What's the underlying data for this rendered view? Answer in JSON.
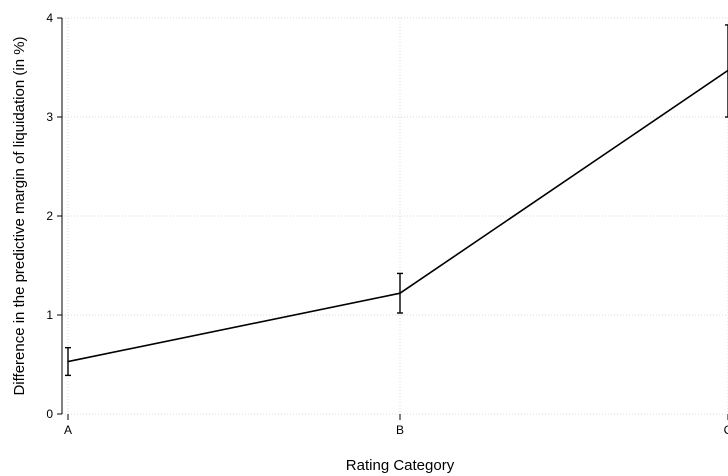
{
  "chart_data": {
    "type": "line",
    "title": "",
    "xlabel": "Rating Category",
    "ylabel": "Difference in the predictive margin of liquidation (in %)",
    "categories": [
      "A",
      "B",
      "C"
    ],
    "series": [
      {
        "values": [
          0.53,
          1.22,
          3.47
        ],
        "ci_low": [
          0.39,
          1.02,
          3.0
        ],
        "ci_high": [
          0.67,
          1.42,
          3.93
        ]
      }
    ],
    "ylim": [
      0,
      4
    ],
    "yticks": [
      "0",
      "1",
      "2",
      "3",
      "4"
    ],
    "grid": true,
    "colors": {
      "line": "#000000",
      "grid": "#d9d9d9",
      "axis": "#000000"
    }
  }
}
